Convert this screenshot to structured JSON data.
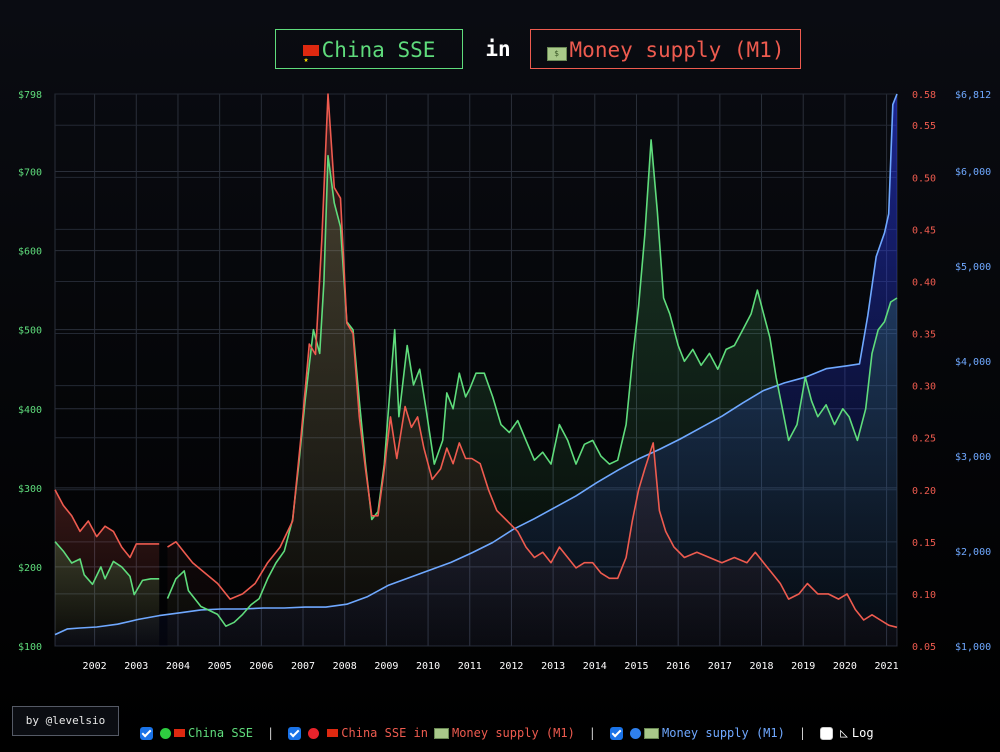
{
  "title": {
    "left_label": "China SSE",
    "connector": "in",
    "right_label": "Money supply (M1)"
  },
  "credit": "by @levelsio",
  "legend": {
    "series1": "China SSE",
    "series2_a": "China SSE in",
    "series2_b": "Money supply (M1)",
    "series3": "Money supply (M1)",
    "log": "Log",
    "separator": "|"
  },
  "colors": {
    "sse": "#5fdc7c",
    "ratio": "#ee5b4f",
    "m1": "#6fa8ff",
    "grid": "#2a2f3a"
  },
  "icons": [
    "china-flag-icon",
    "money-icon",
    "green-circle-icon",
    "red-circle-icon",
    "blue-circle-icon",
    "log-scale-icon",
    "checkbox-icon"
  ],
  "chart_data": {
    "type": "line",
    "x_ticks": [
      "2002",
      "2003",
      "2004",
      "2005",
      "2006",
      "2007",
      "2008",
      "2009",
      "2010",
      "2011",
      "2012",
      "2013",
      "2014",
      "2015",
      "2016",
      "2017",
      "2018",
      "2019",
      "2020",
      "2021"
    ],
    "y_left": {
      "ticks": [
        "$100",
        "$200",
        "$300",
        "$400",
        "$500",
        "$600",
        "$700",
        "$798"
      ],
      "range": [
        100,
        798
      ]
    },
    "y_right1": {
      "ticks": [
        "0.05",
        "0.10",
        "0.15",
        "0.20",
        "0.25",
        "0.30",
        "0.35",
        "0.40",
        "0.45",
        "0.50",
        "0.55",
        "0.58"
      ],
      "range": [
        0.05,
        0.58
      ]
    },
    "y_right2": {
      "ticks": [
        "$1,000",
        "$2,000",
        "$3,000",
        "$4,000",
        "$5,000",
        "$6,000",
        "$6,812"
      ],
      "range": [
        1000,
        6812
      ]
    },
    "grid": true,
    "series": [
      {
        "name": "China SSE",
        "color": "#5fdc7c",
        "fill": true,
        "points": [
          [
            2001.0,
            232
          ],
          [
            2001.2,
            220
          ],
          [
            2001.4,
            205
          ],
          [
            2001.6,
            210
          ],
          [
            2001.7,
            190
          ],
          [
            2001.9,
            178
          ],
          [
            2002.1,
            200
          ],
          [
            2002.2,
            185
          ],
          [
            2002.4,
            207
          ],
          [
            2002.6,
            200
          ],
          [
            2002.8,
            188
          ],
          [
            2002.9,
            165
          ],
          [
            2003.1,
            183
          ],
          [
            2003.3,
            185
          ],
          [
            2003.5,
            185
          ],
          [
            null,
            null
          ],
          [
            2003.7,
            160
          ],
          [
            2003.9,
            185
          ],
          [
            2004.1,
            195
          ],
          [
            2004.2,
            170
          ],
          [
            2004.5,
            150
          ],
          [
            2004.7,
            145
          ],
          [
            2004.9,
            140
          ],
          [
            2005.1,
            125
          ],
          [
            2005.3,
            130
          ],
          [
            2005.5,
            140
          ],
          [
            2005.7,
            152
          ],
          [
            2005.9,
            160
          ],
          [
            2006.1,
            185
          ],
          [
            2006.3,
            205
          ],
          [
            2006.5,
            220
          ],
          [
            2006.7,
            260
          ],
          [
            2006.85,
            330
          ],
          [
            2007.0,
            410
          ],
          [
            2007.2,
            500
          ],
          [
            2007.35,
            470
          ],
          [
            2007.45,
            560
          ],
          [
            2007.55,
            720
          ],
          [
            2007.7,
            660
          ],
          [
            2007.85,
            630
          ],
          [
            2008.0,
            510
          ],
          [
            2008.15,
            500
          ],
          [
            2008.3,
            410
          ],
          [
            2008.45,
            330
          ],
          [
            2008.6,
            260
          ],
          [
            2008.75,
            270
          ],
          [
            2008.9,
            330
          ],
          [
            2009.0,
            400
          ],
          [
            2009.15,
            500
          ],
          [
            2009.25,
            390
          ],
          [
            2009.45,
            480
          ],
          [
            2009.6,
            430
          ],
          [
            2009.75,
            450
          ],
          [
            2009.9,
            400
          ],
          [
            2010.1,
            330
          ],
          [
            2010.3,
            360
          ],
          [
            2010.4,
            420
          ],
          [
            2010.55,
            400
          ],
          [
            2010.7,
            445
          ],
          [
            2010.85,
            415
          ],
          [
            2010.95,
            425
          ],
          [
            2011.1,
            445
          ],
          [
            2011.3,
            445
          ],
          [
            2011.5,
            415
          ],
          [
            2011.7,
            380
          ],
          [
            2011.9,
            370
          ],
          [
            2012.1,
            385
          ],
          [
            2012.3,
            360
          ],
          [
            2012.5,
            335
          ],
          [
            2012.7,
            345
          ],
          [
            2012.9,
            330
          ],
          [
            2013.1,
            380
          ],
          [
            2013.3,
            360
          ],
          [
            2013.5,
            330
          ],
          [
            2013.7,
            355
          ],
          [
            2013.9,
            360
          ],
          [
            2014.1,
            340
          ],
          [
            2014.3,
            330
          ],
          [
            2014.5,
            335
          ],
          [
            2014.7,
            380
          ],
          [
            2014.85,
            460
          ],
          [
            2015.0,
            530
          ],
          [
            2015.15,
            620
          ],
          [
            2015.3,
            740
          ],
          [
            2015.45,
            650
          ],
          [
            2015.6,
            540
          ],
          [
            2015.75,
            520
          ],
          [
            2015.95,
            480
          ],
          [
            2016.1,
            460
          ],
          [
            2016.3,
            475
          ],
          [
            2016.5,
            455
          ],
          [
            2016.7,
            470
          ],
          [
            2016.9,
            450
          ],
          [
            2017.1,
            475
          ],
          [
            2017.3,
            480
          ],
          [
            2017.5,
            500
          ],
          [
            2017.7,
            520
          ],
          [
            2017.85,
            550
          ],
          [
            2018.0,
            520
          ],
          [
            2018.15,
            490
          ],
          [
            2018.3,
            440
          ],
          [
            2018.45,
            400
          ],
          [
            2018.6,
            360
          ],
          [
            2018.8,
            380
          ],
          [
            2019.0,
            440
          ],
          [
            2019.15,
            410
          ],
          [
            2019.3,
            390
          ],
          [
            2019.5,
            405
          ],
          [
            2019.7,
            380
          ],
          [
            2019.9,
            400
          ],
          [
            2020.05,
            390
          ],
          [
            2020.25,
            360
          ],
          [
            2020.45,
            400
          ],
          [
            2020.6,
            470
          ],
          [
            2020.75,
            500
          ],
          [
            2020.9,
            510
          ],
          [
            2021.05,
            535
          ],
          [
            2021.2,
            540
          ]
        ]
      },
      {
        "name": "China SSE in Money supply (M1)",
        "color": "#ee5b4f",
        "fill": true,
        "points": [
          [
            2001.0,
            0.2
          ],
          [
            2001.2,
            0.185
          ],
          [
            2001.4,
            0.175
          ],
          [
            2001.6,
            0.16
          ],
          [
            2001.8,
            0.17
          ],
          [
            2002.0,
            0.155
          ],
          [
            2002.2,
            0.165
          ],
          [
            2002.4,
            0.16
          ],
          [
            2002.6,
            0.145
          ],
          [
            2002.8,
            0.135
          ],
          [
            2002.95,
            0.148
          ],
          [
            2003.2,
            0.148
          ],
          [
            2003.5,
            0.148
          ],
          [
            null,
            null
          ],
          [
            2003.7,
            0.145
          ],
          [
            2003.9,
            0.15
          ],
          [
            2004.1,
            0.14
          ],
          [
            2004.3,
            0.13
          ],
          [
            2004.6,
            0.12
          ],
          [
            2004.9,
            0.11
          ],
          [
            2005.2,
            0.095
          ],
          [
            2005.5,
            0.1
          ],
          [
            2005.8,
            0.11
          ],
          [
            2006.1,
            0.13
          ],
          [
            2006.4,
            0.145
          ],
          [
            2006.7,
            0.17
          ],
          [
            2006.9,
            0.25
          ],
          [
            2007.1,
            0.34
          ],
          [
            2007.25,
            0.33
          ],
          [
            2007.4,
            0.44
          ],
          [
            2007.55,
            0.58
          ],
          [
            2007.7,
            0.49
          ],
          [
            2007.85,
            0.48
          ],
          [
            2008.0,
            0.36
          ],
          [
            2008.15,
            0.35
          ],
          [
            2008.3,
            0.27
          ],
          [
            2008.45,
            0.22
          ],
          [
            2008.6,
            0.175
          ],
          [
            2008.75,
            0.175
          ],
          [
            2008.9,
            0.22
          ],
          [
            2009.05,
            0.27
          ],
          [
            2009.2,
            0.23
          ],
          [
            2009.4,
            0.28
          ],
          [
            2009.55,
            0.26
          ],
          [
            2009.7,
            0.27
          ],
          [
            2009.85,
            0.24
          ],
          [
            2010.05,
            0.21
          ],
          [
            2010.25,
            0.22
          ],
          [
            2010.4,
            0.24
          ],
          [
            2010.55,
            0.225
          ],
          [
            2010.7,
            0.245
          ],
          [
            2010.85,
            0.23
          ],
          [
            2011.0,
            0.23
          ],
          [
            2011.2,
            0.225
          ],
          [
            2011.4,
            0.2
          ],
          [
            2011.6,
            0.18
          ],
          [
            2011.85,
            0.17
          ],
          [
            2012.1,
            0.16
          ],
          [
            2012.3,
            0.145
          ],
          [
            2012.5,
            0.135
          ],
          [
            2012.7,
            0.14
          ],
          [
            2012.9,
            0.13
          ],
          [
            2013.1,
            0.145
          ],
          [
            2013.3,
            0.135
          ],
          [
            2013.5,
            0.125
          ],
          [
            2013.7,
            0.13
          ],
          [
            2013.9,
            0.13
          ],
          [
            2014.1,
            0.12
          ],
          [
            2014.3,
            0.115
          ],
          [
            2014.5,
            0.115
          ],
          [
            2014.7,
            0.135
          ],
          [
            2014.85,
            0.17
          ],
          [
            2015.0,
            0.2
          ],
          [
            2015.15,
            0.22
          ],
          [
            2015.35,
            0.245
          ],
          [
            2015.5,
            0.18
          ],
          [
            2015.65,
            0.16
          ],
          [
            2015.85,
            0.145
          ],
          [
            2016.1,
            0.135
          ],
          [
            2016.4,
            0.14
          ],
          [
            2016.7,
            0.135
          ],
          [
            2017.0,
            0.13
          ],
          [
            2017.3,
            0.135
          ],
          [
            2017.6,
            0.13
          ],
          [
            2017.8,
            0.14
          ],
          [
            2018.0,
            0.13
          ],
          [
            2018.2,
            0.12
          ],
          [
            2018.4,
            0.11
          ],
          [
            2018.6,
            0.095
          ],
          [
            2018.85,
            0.1
          ],
          [
            2019.05,
            0.11
          ],
          [
            2019.3,
            0.1
          ],
          [
            2019.55,
            0.1
          ],
          [
            2019.8,
            0.095
          ],
          [
            2020.0,
            0.1
          ],
          [
            2020.2,
            0.085
          ],
          [
            2020.4,
            0.075
          ],
          [
            2020.6,
            0.08
          ],
          [
            2020.8,
            0.075
          ],
          [
            2021.0,
            0.07
          ],
          [
            2021.2,
            0.068
          ]
        ]
      },
      {
        "name": "Money supply (M1)",
        "color": "#6fa8ff",
        "fill": true,
        "points": [
          [
            2001.0,
            1120
          ],
          [
            2001.3,
            1180
          ],
          [
            2001.6,
            1190
          ],
          [
            2002.0,
            1200
          ],
          [
            2002.5,
            1230
          ],
          [
            2003.0,
            1280
          ],
          [
            2003.5,
            1320
          ],
          [
            2004.0,
            1350
          ],
          [
            2004.5,
            1380
          ],
          [
            2005.0,
            1390
          ],
          [
            2005.5,
            1390
          ],
          [
            2006.0,
            1400
          ],
          [
            2006.5,
            1400
          ],
          [
            2007.0,
            1410
          ],
          [
            2007.5,
            1410
          ],
          [
            2008.0,
            1440
          ],
          [
            2008.5,
            1520
          ],
          [
            2009.0,
            1640
          ],
          [
            2009.5,
            1720
          ],
          [
            2010.0,
            1800
          ],
          [
            2010.5,
            1880
          ],
          [
            2011.0,
            1980
          ],
          [
            2011.5,
            2090
          ],
          [
            2012.0,
            2230
          ],
          [
            2012.5,
            2340
          ],
          [
            2013.0,
            2460
          ],
          [
            2013.5,
            2580
          ],
          [
            2014.0,
            2720
          ],
          [
            2014.5,
            2850
          ],
          [
            2015.0,
            2970
          ],
          [
            2015.5,
            3070
          ],
          [
            2016.0,
            3180
          ],
          [
            2016.5,
            3300
          ],
          [
            2017.0,
            3420
          ],
          [
            2017.5,
            3560
          ],
          [
            2018.0,
            3690
          ],
          [
            2018.5,
            3770
          ],
          [
            2019.0,
            3830
          ],
          [
            2019.5,
            3920
          ],
          [
            2020.0,
            3950
          ],
          [
            2020.3,
            3970
          ],
          [
            2020.5,
            4480
          ],
          [
            2020.7,
            5100
          ],
          [
            2020.9,
            5350
          ],
          [
            2021.0,
            5550
          ],
          [
            2021.1,
            6700
          ],
          [
            2021.2,
            6812
          ]
        ]
      }
    ]
  }
}
